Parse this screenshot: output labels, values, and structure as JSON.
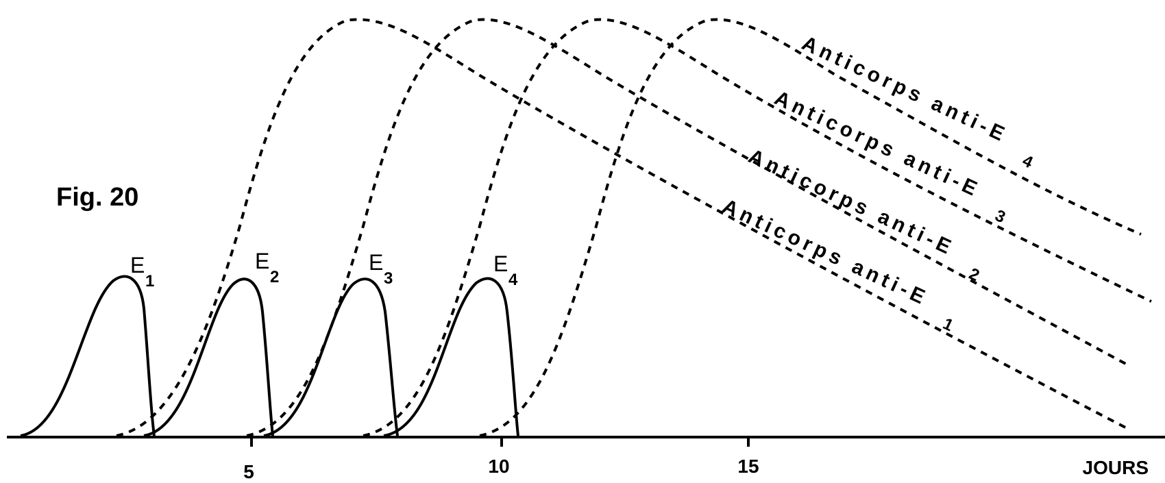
{
  "figure": {
    "label": "Fig. 20",
    "x_axis_label": "JOURS",
    "ticks": [
      "5",
      "10",
      "15"
    ]
  },
  "antigens": [
    {
      "base": "E",
      "sub": "1"
    },
    {
      "base": "E",
      "sub": "2"
    },
    {
      "base": "E",
      "sub": "3"
    },
    {
      "base": "E",
      "sub": "4"
    }
  ],
  "antibodies": [
    {
      "text": "Anticorps anti-E",
      "sub": "1"
    },
    {
      "text": "Anticorps anti-E",
      "sub": "2"
    },
    {
      "text": "Anticorps anti-E",
      "sub": "3"
    },
    {
      "text": "Anticorps anti-E",
      "sub": "4"
    }
  ]
}
